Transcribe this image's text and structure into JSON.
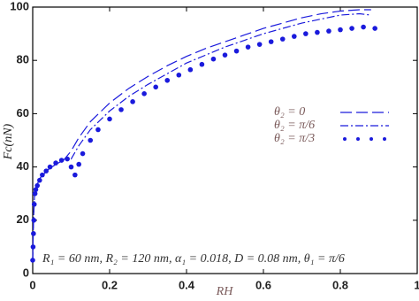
{
  "chart_data": {
    "type": "line",
    "xlabel": "RH",
    "ylabel": "Fc(nN)",
    "annotation": "R₁ = 60 nm, R₂ = 120 nm, α₁ = 0.018, D = 0.08 nm, θ₁ = π/6",
    "xlim": [
      0,
      1
    ],
    "ylim": [
      0,
      100
    ],
    "xticks": [
      0,
      0.2,
      0.4,
      0.6,
      0.8,
      1
    ],
    "yticks": [
      0,
      20,
      40,
      60,
      80,
      100
    ],
    "series": [
      {
        "name": "θ₂ = 0",
        "color": "#1a1adc",
        "style": "dashed",
        "x": [
          0,
          0.002,
          0.005,
          0.01,
          0.02,
          0.04,
          0.06,
          0.08,
          0.1,
          0.12,
          0.15,
          0.2,
          0.25,
          0.3,
          0.35,
          0.4,
          0.45,
          0.5,
          0.55,
          0.6,
          0.65,
          0.7,
          0.75,
          0.8,
          0.85,
          0.88
        ],
        "values": [
          5,
          20,
          30,
          33,
          36,
          39,
          41,
          42.5,
          46,
          51,
          57,
          64,
          69.5,
          74,
          78,
          81.5,
          84.5,
          87,
          89.5,
          92,
          94,
          96,
          97.5,
          98.5,
          99,
          99
        ]
      },
      {
        "name": "θ₂ = π/6",
        "color": "#1a1adc",
        "style": "dashdot",
        "x": [
          0,
          0.002,
          0.005,
          0.01,
          0.02,
          0.04,
          0.06,
          0.08,
          0.1,
          0.12,
          0.15,
          0.2,
          0.25,
          0.3,
          0.35,
          0.4,
          0.45,
          0.5,
          0.55,
          0.6,
          0.65,
          0.7,
          0.75,
          0.8,
          0.85,
          0.88
        ],
        "values": [
          5,
          20,
          30,
          33,
          36,
          39,
          41,
          42.5,
          43,
          48,
          54,
          61,
          66.5,
          71,
          75,
          79,
          82,
          85,
          87.5,
          90,
          92,
          94,
          95.5,
          97,
          97.5,
          97
        ]
      },
      {
        "name": "θ₂ = π/3",
        "color": "#1a1adc",
        "style": "dots",
        "x": [
          0,
          0.001,
          0.002,
          0.003,
          0.004,
          0.006,
          0.008,
          0.012,
          0.018,
          0.025,
          0.035,
          0.045,
          0.06,
          0.075,
          0.09,
          0.1,
          0.11,
          0.12,
          0.13,
          0.15,
          0.17,
          0.2,
          0.23,
          0.26,
          0.29,
          0.32,
          0.35,
          0.38,
          0.41,
          0.44,
          0.47,
          0.5,
          0.53,
          0.56,
          0.59,
          0.62,
          0.65,
          0.68,
          0.71,
          0.74,
          0.77,
          0.8,
          0.83,
          0.86,
          0.89
        ],
        "values": [
          5,
          10,
          15,
          20,
          26,
          30,
          31.5,
          33,
          35,
          37,
          38.5,
          40,
          41.5,
          42.5,
          43,
          40,
          37,
          41,
          45,
          50,
          54,
          58,
          61.5,
          64.5,
          67.5,
          70,
          72.5,
          74.5,
          76.5,
          78.5,
          80.5,
          82,
          83.5,
          85,
          86,
          87,
          88,
          89,
          90,
          90.5,
          91,
          91.5,
          92,
          92.5,
          92
        ]
      }
    ]
  }
}
